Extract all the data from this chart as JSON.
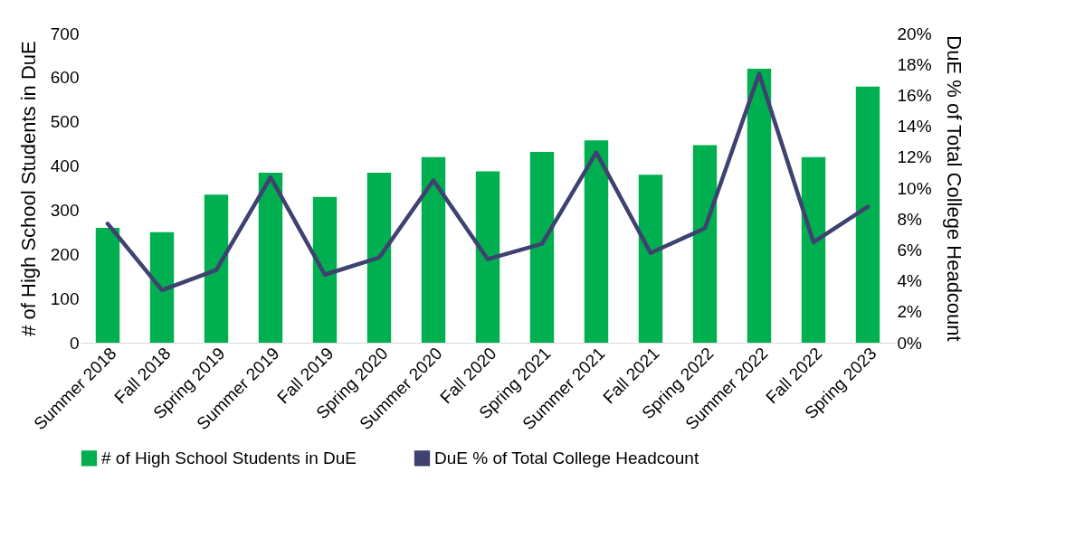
{
  "chart_data": {
    "type": "bar",
    "categories": [
      "Summer 2018",
      "Fall 2018",
      "Spring 2019",
      "Summer 2019",
      "Fall 2019",
      "Spring 2020",
      "Summer 2020",
      "Fall 2020",
      "Spring 2021",
      "Summer 2021",
      "Fall 2021",
      "Spring 2022",
      "Summer 2022",
      "Fall 2022",
      "Spring 2023"
    ],
    "ylabel": "# of High School Students in DuE",
    "y2label": "DuE % of Total College Headcount",
    "series": [
      {
        "name": "# of High School Students in DuE",
        "color": "#00b050",
        "values": [
          260,
          250,
          335,
          385,
          330,
          385,
          420,
          388,
          432,
          458,
          380,
          447,
          620,
          420,
          580
        ]
      },
      {
        "name": "DuE % of Total College Headcount",
        "type": "line",
        "axis": "y2",
        "color": "#3f4170",
        "values": [
          7.7,
          3.4,
          4.7,
          10.7,
          4.4,
          5.5,
          10.5,
          5.4,
          6.4,
          12.3,
          5.8,
          7.4,
          17.4,
          6.5,
          8.8
        ]
      }
    ],
    "ylim": [
      0,
      700
    ],
    "yticks": [
      0,
      100,
      200,
      300,
      400,
      500,
      600,
      700
    ],
    "y2lim": [
      0,
      20
    ],
    "y2ticks": [
      {
        "value": 0,
        "label": "0%"
      },
      {
        "value": 2,
        "label": "2%"
      },
      {
        "value": 4,
        "label": "4%"
      },
      {
        "value": 6,
        "label": "6%"
      },
      {
        "value": 8,
        "label": "8%"
      },
      {
        "value": 10,
        "label": "10%"
      },
      {
        "value": 12,
        "label": "12%"
      },
      {
        "value": 14,
        "label": "14%"
      },
      {
        "value": 16,
        "label": "16%"
      },
      {
        "value": 18,
        "label": "18%"
      },
      {
        "value": 20,
        "label": "20%"
      }
    ],
    "grid": false,
    "legend": "bottom",
    "marker": "none",
    "line_style": "solid"
  }
}
